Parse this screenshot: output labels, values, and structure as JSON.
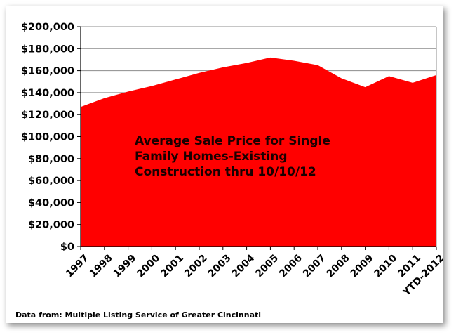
{
  "chart_data": {
    "type": "area",
    "categories": [
      "1997",
      "1998",
      "1999",
      "2000",
      "2001",
      "2002",
      "2003",
      "2004",
      "2005",
      "2006",
      "2007",
      "2008",
      "2009",
      "2010",
      "2011",
      "YTD-2012"
    ],
    "series": [
      {
        "values": [
          127000,
          135000,
          141000,
          146000,
          152000,
          158000,
          163000,
          167000,
          172000,
          169000,
          165000,
          153000,
          145000,
          155000,
          149000,
          156000
        ]
      }
    ],
    "y_ticks": [
      "$0",
      "$20,000",
      "$40,000",
      "$60,000",
      "$80,000",
      "$100,000",
      "$120,000",
      "$140,000",
      "$160,000",
      "$180,000",
      "$200,000"
    ],
    "ylim": [
      0,
      200000
    ],
    "grid": true,
    "annotation_lines": [
      "Average Sale Price for Single",
      "Family Homes-Existing",
      "Construction thru 10/10/12"
    ],
    "source": "Data from: Multiple Listing Service of Greater Cincinnati",
    "colors": {
      "fill": "#ff0000",
      "grid": "#8c8c8c",
      "axis": "#000000"
    }
  }
}
